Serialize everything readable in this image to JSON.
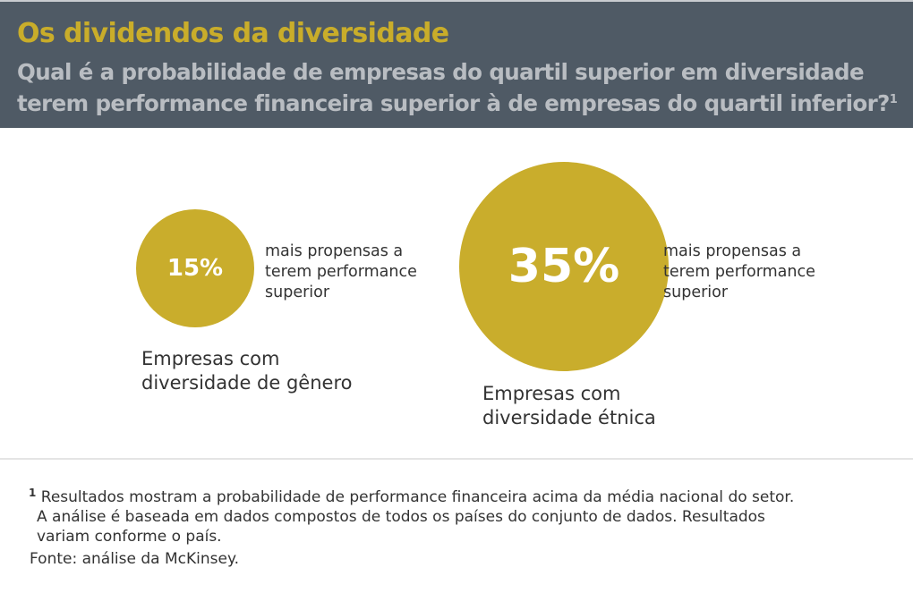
{
  "header": {
    "title": "Os dividendos da diversidade",
    "subtitle_line1": "Qual é a probabilidade de empresas do quartil superior em diversidade",
    "subtitle_line2": "terem performance financeira superior à de empresas do quartil inferior?",
    "subtitle_footnote_mark": "1"
  },
  "items": [
    {
      "value": "15%",
      "note_lines": [
        "mais propensas a",
        "terem performance",
        "superior"
      ],
      "label_lines": [
        "Empresas com",
        "diversidade de gênero"
      ]
    },
    {
      "value": "35%",
      "note_lines": [
        "mais propensas a",
        "terem performance",
        "superior"
      ],
      "label_lines": [
        "Empresas com",
        "diversidade étnica"
      ]
    }
  ],
  "footnote": {
    "mark": "1",
    "line1": "Resultados mostram a probabilidade de performance financeira acima da média nacional do setor.",
    "line2": "A análise é baseada em dados compostos de todos os países do conjunto de dados. Resultados",
    "line3": "variam conforme o país.",
    "source": "Fonte: análise da McKinsey."
  },
  "colors": {
    "header_bg": "#4f5a65",
    "accent": "#c9ad2a",
    "subtitle": "#b9bdc2"
  }
}
